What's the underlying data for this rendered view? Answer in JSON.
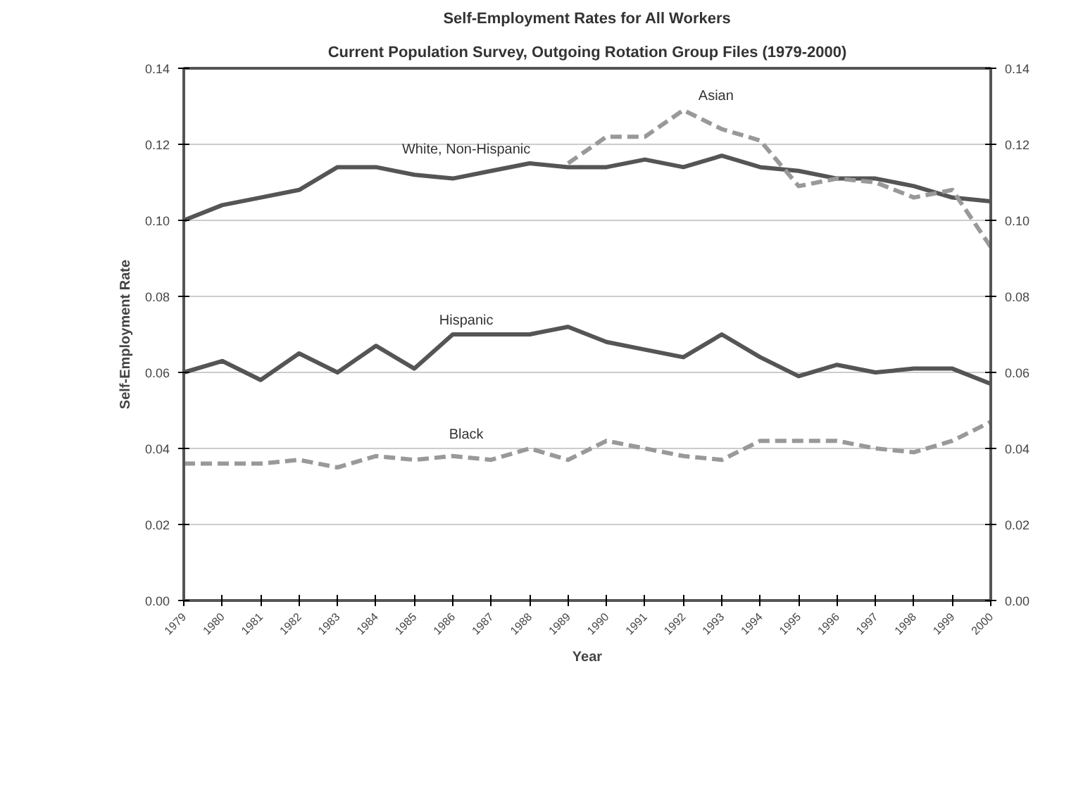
{
  "chart_data": {
    "type": "line",
    "title": "Self-Employment Rates for All Workers",
    "subtitle": "Current Population Survey, Outgoing Rotation Group Files (1979-2000)",
    "xlabel": "Year",
    "ylabel": "Self-Employment Rate",
    "categories": [
      "1979",
      "1980",
      "1981",
      "1982",
      "1983",
      "1984",
      "1985",
      "1986",
      "1987",
      "1988",
      "1989",
      "1990",
      "1991",
      "1992",
      "1993",
      "1994",
      "1995",
      "1996",
      "1997",
      "1998",
      "1999",
      "2000"
    ],
    "series": [
      {
        "name": "White, Non-Hispanic",
        "color": "#555555",
        "line_style": "solid",
        "values": [
          0.1,
          0.104,
          0.106,
          0.108,
          0.114,
          0.114,
          0.112,
          0.111,
          0.113,
          0.115,
          0.114,
          0.114,
          0.116,
          0.114,
          0.117,
          0.114,
          0.113,
          0.111,
          0.111,
          0.109,
          0.106,
          0.105
        ]
      },
      {
        "name": "Asian",
        "color": "#999999",
        "line_style": "dashed",
        "values": [
          null,
          null,
          null,
          null,
          null,
          null,
          null,
          null,
          null,
          null,
          0.115,
          0.122,
          0.122,
          0.129,
          0.124,
          0.121,
          0.109,
          0.111,
          0.11,
          0.106,
          0.108,
          0.093
        ]
      },
      {
        "name": "Hispanic",
        "color": "#555555",
        "line_style": "solid",
        "values": [
          0.06,
          0.063,
          0.058,
          0.065,
          0.06,
          0.067,
          0.061,
          0.07,
          0.07,
          0.07,
          0.072,
          0.068,
          0.066,
          0.064,
          0.07,
          0.064,
          0.059,
          0.062,
          0.06,
          0.061,
          0.061,
          0.057
        ]
      },
      {
        "name": "Black",
        "color": "#999999",
        "line_style": "dashed",
        "values": [
          0.036,
          0.036,
          0.036,
          0.037,
          0.035,
          0.038,
          0.037,
          0.038,
          0.037,
          0.04,
          0.037,
          0.042,
          0.04,
          0.038,
          0.037,
          0.042,
          0.042,
          0.042,
          0.04,
          0.039,
          0.042,
          0.047
        ]
      }
    ],
    "ylim": [
      0,
      0.14
    ],
    "yticks": [
      {
        "value": 0,
        "label": "0.00"
      },
      {
        "value": 0.02,
        "label": "0.02"
      },
      {
        "value": 0.04,
        "label": "0.04"
      },
      {
        "value": 0.06,
        "label": "0.06"
      },
      {
        "value": 0.08,
        "label": "0.08"
      },
      {
        "value": 0.1,
        "label": "0.10"
      },
      {
        "value": 0.12,
        "label": "0.12"
      },
      {
        "value": 0.14,
        "label": "0.14"
      }
    ],
    "y2lim": [
      0,
      0.14
    ],
    "y2ticks": [
      {
        "value": 0,
        "label": "0.00"
      },
      {
        "value": 0.02,
        "label": "0.02"
      },
      {
        "value": 0.04,
        "label": "0.04"
      },
      {
        "value": 0.06,
        "label": "0.06"
      },
      {
        "value": 0.08,
        "label": "0.08"
      },
      {
        "value": 0.1,
        "label": "0.10"
      },
      {
        "value": 0.12,
        "label": "0.12"
      },
      {
        "value": 0.14,
        "label": "0.14"
      }
    ],
    "grid": "y",
    "marker": "none"
  }
}
